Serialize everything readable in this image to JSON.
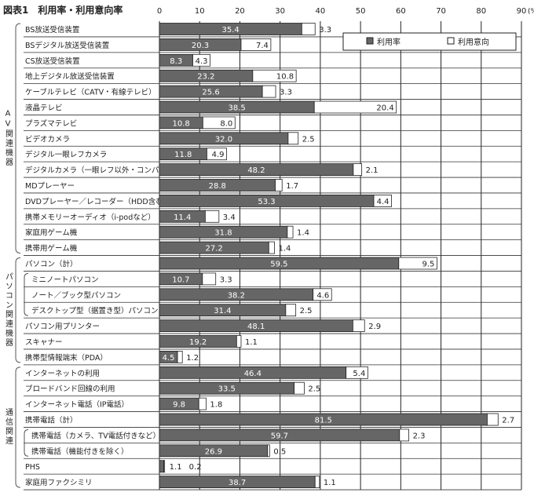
{
  "chart_data": {
    "type": "bar",
    "orientation": "horizontal",
    "stacked": true,
    "title": "図表1　利用率・利用意向率",
    "unit_label": "(%)",
    "xlim": [
      0,
      90
    ],
    "xticks": [
      0,
      10,
      20,
      30,
      40,
      50,
      60,
      70,
      80,
      90
    ],
    "grid": true,
    "legend_placement": "top-right",
    "series": [
      {
        "name": "利用率",
        "color": "#666666"
      },
      {
        "name": "利用意向",
        "color": "#ffffff"
      }
    ],
    "categories": [
      {
        "label": "BS放送受信装置",
        "use": 35.4,
        "intent": 3.3
      },
      {
        "label": "BSデジタル放送受信装置",
        "use": 20.3,
        "intent": 7.4
      },
      {
        "label": "CS放送受信装置",
        "use": 8.3,
        "intent": 4.3
      },
      {
        "label": "地上デジタル放送受信装置",
        "use": 23.2,
        "intent": 10.8
      },
      {
        "label": "ケーブルテレビ（CATV・有線テレビ）",
        "use": 25.6,
        "intent": 3.3
      },
      {
        "label": "液晶テレビ",
        "use": 38.5,
        "intent": 20.4
      },
      {
        "label": "プラズマテレビ",
        "use": 10.8,
        "intent": 8.0
      },
      {
        "label": "ビデオカメラ",
        "use": 32.0,
        "intent": 2.5
      },
      {
        "label": "デジタル一眼レフカメラ",
        "use": 11.8,
        "intent": 4.9
      },
      {
        "label": "デジタルカメラ（一眼レフ以外・コンパクト）",
        "use": 48.2,
        "intent": 2.1
      },
      {
        "label": "MDプレーヤー",
        "use": 28.8,
        "intent": 1.7
      },
      {
        "label": "DVDプレーヤー／レコーダー（HDD含む）",
        "use": 53.3,
        "intent": 4.4
      },
      {
        "label": "携帯メモリーオーディオ（i-podなど）",
        "use": 11.4,
        "intent": 3.4
      },
      {
        "label": "家庭用ゲーム機",
        "use": 31.8,
        "intent": 1.4
      },
      {
        "label": "携帯用ゲーム機",
        "use": 27.2,
        "intent": 1.4
      },
      {
        "label": "パソコン（計）",
        "use": 59.5,
        "intent": 9.5
      },
      {
        "label": "ミニノートパソコン",
        "use": 10.7,
        "intent": 3.3,
        "sub": true
      },
      {
        "label": "ノート／ブック型パソコン",
        "use": 38.2,
        "intent": 4.6,
        "sub": true
      },
      {
        "label": "デスクトップ型（据置き型）パソコン",
        "use": 31.4,
        "intent": 2.5,
        "sub": true
      },
      {
        "label": "パソコン用プリンター",
        "use": 48.1,
        "intent": 2.9
      },
      {
        "label": "スキャナー",
        "use": 19.2,
        "intent": 1.1
      },
      {
        "label": "携帯型情報端末（PDA）",
        "use": 4.5,
        "intent": 1.2
      },
      {
        "label": "インターネットの利用",
        "use": 46.4,
        "intent": 5.4
      },
      {
        "label": "ブロードバンド回線の利用",
        "use": 33.5,
        "intent": 2.5
      },
      {
        "label": "インターネット電話（IP電話）",
        "use": 9.8,
        "intent": 1.8
      },
      {
        "label": "携帯電話（計）",
        "use": 81.5,
        "intent": 2.7
      },
      {
        "label": "携帯電話（カメラ、TV電話付きなど）",
        "use": 59.7,
        "intent": 2.3,
        "sub": true
      },
      {
        "label": "携帯電話（機能付きを除く）",
        "use": 26.9,
        "intent": 0.5,
        "sub": true
      },
      {
        "label": "PHS",
        "use": 1.1,
        "intent": 0.2
      },
      {
        "label": "家庭用ファクシミリ",
        "use": 38.7,
        "intent": 1.1
      }
    ],
    "groups": [
      {
        "label": "AV関連機器",
        "from": 0,
        "to": 14
      },
      {
        "label": "パソコン関連機器",
        "from": 15,
        "to": 21,
        "subfrom": 16,
        "subto": 18
      },
      {
        "label": "通信関連",
        "from": 22,
        "to": 29,
        "subfrom": 26,
        "subto": 27
      }
    ]
  }
}
